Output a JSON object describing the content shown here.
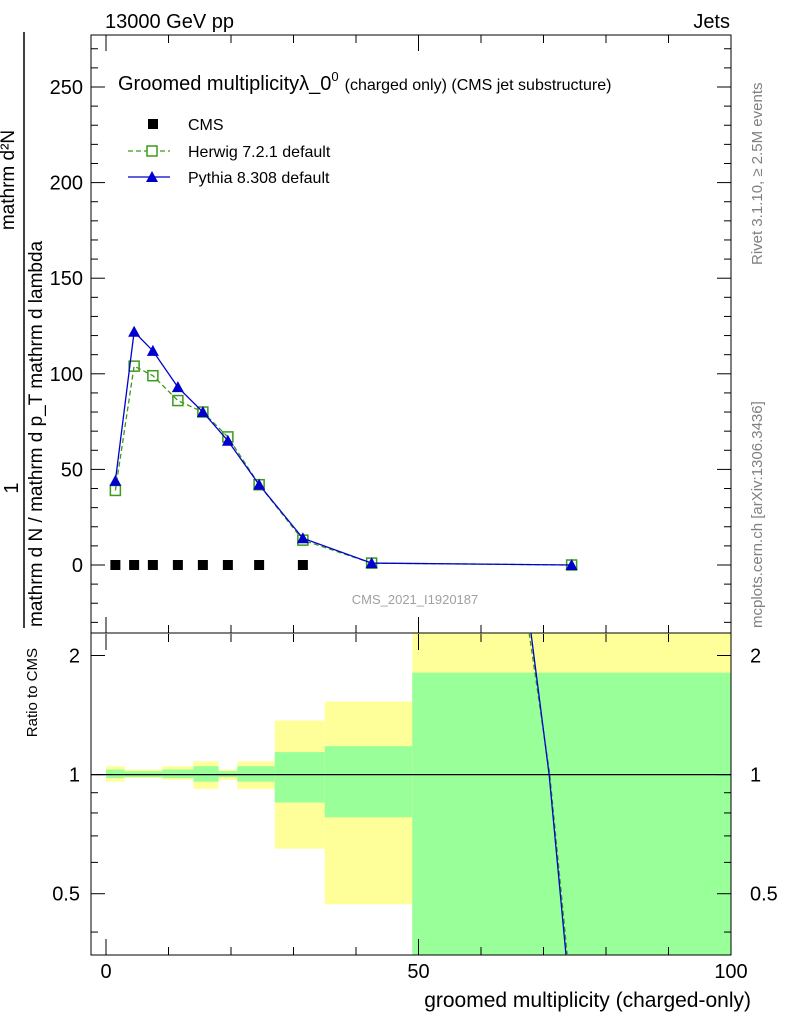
{
  "header": {
    "left": "13000 GeV pp",
    "right": "Jets"
  },
  "chart_data": {
    "type": "line",
    "title": "Groomed multiplicityλ_0",
    "title_sup": "0",
    "title_suffix": "(charged only) (CMS jet substructure)",
    "ylabel_main": "mathrm d N / mathrm d p_T mathrm d lambda",
    "ylabel_main_top": "mathrm d²N",
    "ylabel_main_frac": "1",
    "ylabel_ratio": "Ratio to CMS",
    "xlabel": "groomed multiplicity (charged-only)",
    "watermark": "CMS_2021_I1920187",
    "side_label_top": "Rivet 3.1.10, ≥ 2.5M events",
    "side_label_bottom": "mcplots.cern.ch [arXiv:1306.3436]",
    "xlim": [
      -2,
      100
    ],
    "ylim_main": [
      -35,
      277
    ],
    "ylim_ratio": [
      0.35,
      2.28
    ],
    "xticks": [
      0,
      50,
      100
    ],
    "yticks_main": [
      0,
      50,
      100,
      150,
      200,
      250
    ],
    "yticks_ratio": [
      0.5,
      1,
      2
    ],
    "legend_position": "top-left",
    "series": [
      {
        "name": "CMS",
        "color": "#000000",
        "marker": "square",
        "x": [
          1.5,
          4.5,
          7.5,
          11.5,
          15.5,
          19.5,
          24.5,
          31.5
        ],
        "y": [
          0,
          0,
          0,
          0,
          0,
          0,
          0,
          0
        ]
      },
      {
        "name": "Herwig 7.2.1 default",
        "color": "#3c9a1c",
        "marker": "open-square",
        "x": [
          1.5,
          4.5,
          7.5,
          11.5,
          15.5,
          19.5,
          24.5,
          31.5,
          42.5,
          74.5
        ],
        "y": [
          39,
          104,
          99,
          86,
          80,
          67,
          42,
          13,
          1,
          0
        ]
      },
      {
        "name": "Pythia 8.308 default",
        "color": "#0000cc",
        "marker": "triangle",
        "x": [
          1.5,
          4.5,
          7.5,
          11.5,
          15.5,
          19.5,
          24.5,
          31.5,
          42.5,
          74.5
        ],
        "y": [
          44,
          122,
          112,
          93,
          80,
          65,
          42,
          14,
          1,
          0
        ]
      }
    ],
    "ratio_bands": [
      {
        "x0": 0,
        "x1": 3,
        "green": [
          0.98,
          1.03
        ],
        "yellow": [
          0.96,
          1.05
        ]
      },
      {
        "x0": 3,
        "x1": 6,
        "green": [
          0.985,
          1.02
        ],
        "yellow": [
          0.98,
          1.03
        ]
      },
      {
        "x0": 6,
        "x1": 9,
        "green": [
          0.985,
          1.02
        ],
        "yellow": [
          0.98,
          1.03
        ]
      },
      {
        "x0": 9,
        "x1": 14,
        "green": [
          0.98,
          1.03
        ],
        "yellow": [
          0.97,
          1.05
        ]
      },
      {
        "x0": 14,
        "x1": 18,
        "green": [
          0.96,
          1.05
        ],
        "yellow": [
          0.92,
          1.08
        ]
      },
      {
        "x0": 18,
        "x1": 21,
        "green": [
          0.985,
          1.02
        ],
        "yellow": [
          0.97,
          1.03
        ]
      },
      {
        "x0": 21,
        "x1": 27,
        "green": [
          0.96,
          1.05
        ],
        "yellow": [
          0.92,
          1.08
        ]
      },
      {
        "x0": 27,
        "x1": 35,
        "green": [
          0.85,
          1.14
        ],
        "yellow": [
          0.65,
          1.37
        ]
      },
      {
        "x0": 35,
        "x1": 49,
        "green": [
          0.78,
          1.18
        ],
        "yellow": [
          0.47,
          1.53
        ]
      },
      {
        "x0": 49,
        "x1": 100,
        "green": [
          0.35,
          1.81
        ],
        "yellow": [
          0.35,
          2.28
        ]
      }
    ],
    "ratio_lines": [
      {
        "name": "Herwig 7.2.1 default",
        "color": "#3c9a1c",
        "dashed": true,
        "x": [
          67.7,
          71.0,
          73.8
        ],
        "y": [
          2.28,
          1.0,
          0.35
        ]
      },
      {
        "name": "Pythia 8.308 default",
        "color": "#0000cc",
        "dashed": false,
        "x": [
          68.0,
          70.9,
          73.6
        ],
        "y": [
          2.28,
          1.0,
          0.35
        ]
      }
    ]
  }
}
